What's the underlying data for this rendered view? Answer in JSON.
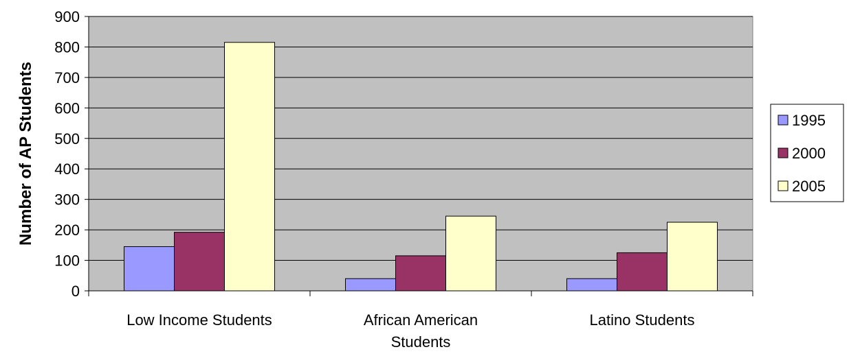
{
  "chart_data": {
    "type": "bar",
    "categories": [
      [
        "Low Income Students"
      ],
      [
        "African American",
        "Students"
      ],
      [
        "Latino Students"
      ]
    ],
    "series": [
      {
        "name": "1995",
        "values": [
          145,
          40,
          40
        ],
        "color": "#9999FF"
      },
      {
        "name": "2000",
        "values": [
          192,
          115,
          125
        ],
        "color": "#993366"
      },
      {
        "name": "2005",
        "values": [
          815,
          245,
          225
        ],
        "color": "#FFFFCC"
      }
    ],
    "ylabel": "Number of AP Students",
    "ylim": [
      0,
      900
    ],
    "yticks": [
      0,
      100,
      200,
      300,
      400,
      500,
      600,
      700,
      800,
      900
    ],
    "grid": true,
    "plot_background": "#C0C0C0",
    "legend_position": "right"
  }
}
